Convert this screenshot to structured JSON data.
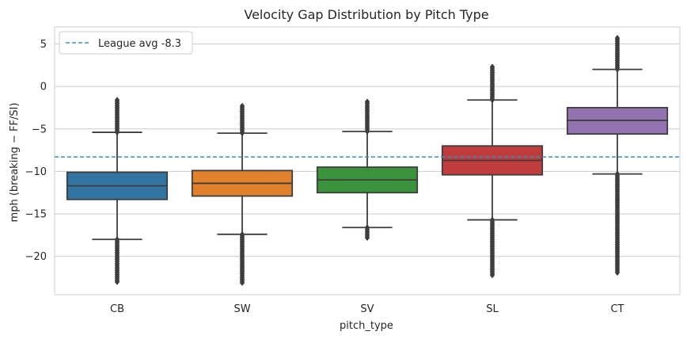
{
  "chart_data": {
    "type": "box",
    "title": "Velocity Gap Distribution by Pitch Type",
    "xlabel": "pitch_type",
    "ylabel": "mph (breaking − FF/SI)",
    "ylim": [
      -24.5,
      7
    ],
    "yticks": [
      5,
      0,
      -5,
      -10,
      -15,
      -20
    ],
    "ytick_labels": [
      "5",
      "0",
      "−5",
      "−10",
      "−15",
      "−20"
    ],
    "grid": true,
    "legend_position": "top-left",
    "reference_line": {
      "label": "League avg -8.3",
      "value": -8.3,
      "color": "#3a8fc0"
    },
    "categories": [
      "CB",
      "SW",
      "SV",
      "SL",
      "CT"
    ],
    "boxes": [
      {
        "name": "CB",
        "color": "#3274a1",
        "q1": -13.3,
        "median": -11.7,
        "q3": -10.1,
        "whisker_low": -18.0,
        "whisker_high": -5.4,
        "flier_low_min": -23.0,
        "flier_low_max": -18.0,
        "flier_high_min": -5.4,
        "flier_high_max": -1.6
      },
      {
        "name": "SW",
        "color": "#e1812c",
        "q1": -12.9,
        "median": -11.4,
        "q3": -9.9,
        "whisker_low": -17.4,
        "whisker_high": -5.5,
        "flier_low_min": -23.1,
        "flier_low_max": -17.4,
        "flier_high_min": -5.5,
        "flier_high_max": -2.3
      },
      {
        "name": "SV",
        "color": "#3a923a",
        "q1": -12.5,
        "median": -11.0,
        "q3": -9.5,
        "whisker_low": -16.6,
        "whisker_high": -5.3,
        "flier_low_min": -17.8,
        "flier_low_max": -16.6,
        "flier_high_min": -5.3,
        "flier_high_max": -1.8
      },
      {
        "name": "SL",
        "color": "#c03d3e",
        "q1": -10.4,
        "median": -8.7,
        "q3": -7.0,
        "whisker_low": -15.7,
        "whisker_high": -1.6,
        "flier_low_min": -22.2,
        "flier_low_max": -15.7,
        "flier_high_min": -1.6,
        "flier_high_max": 2.3
      },
      {
        "name": "CT",
        "color": "#9372b2",
        "q1": -5.6,
        "median": -4.0,
        "q3": -2.5,
        "whisker_low": -10.3,
        "whisker_high": 2.0,
        "flier_low_min": -21.9,
        "flier_low_max": -10.3,
        "flier_high_min": 2.0,
        "flier_high_max": 5.7
      }
    ]
  }
}
